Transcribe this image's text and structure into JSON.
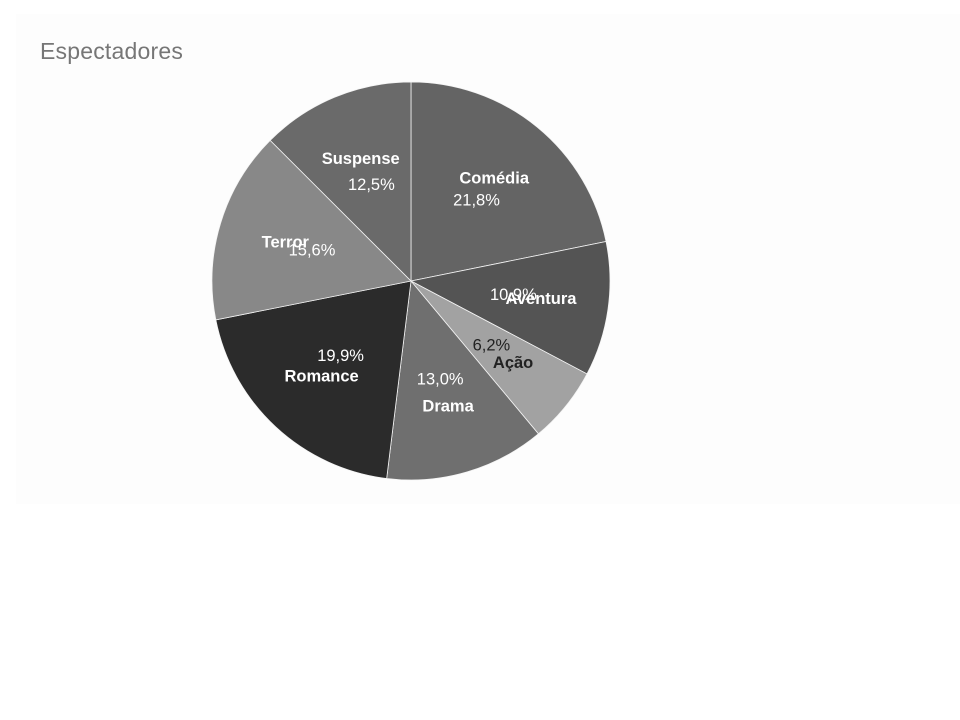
{
  "chart_data": {
    "type": "pie",
    "title": "Espectadores",
    "categories": [
      "Comédia",
      "Aventura",
      "Ação",
      "Drama",
      "Romance",
      "Terror",
      "Suspense"
    ],
    "values": [
      21.8,
      10.9,
      6.2,
      13.0,
      19.9,
      15.6,
      12.5
    ],
    "value_labels": [
      "21,8%",
      "10,9%",
      "6,2%",
      "13,0%",
      "19,9%",
      "15,6%",
      "12,5%"
    ],
    "colors": [
      "#646464",
      "#545454",
      "#a2a2a2",
      "#6f6f6f",
      "#2b2b2b",
      "#888888",
      "#6a6a6a"
    ],
    "label_colors": [
      "#ffffff",
      "#ffffff",
      "#222222",
      "#ffffff",
      "#ffffff",
      "#ffffff",
      "#ffffff"
    ],
    "start_angle_deg": 0,
    "direction": "clockwise",
    "legend": "none",
    "labels_inside_slices": true
  }
}
